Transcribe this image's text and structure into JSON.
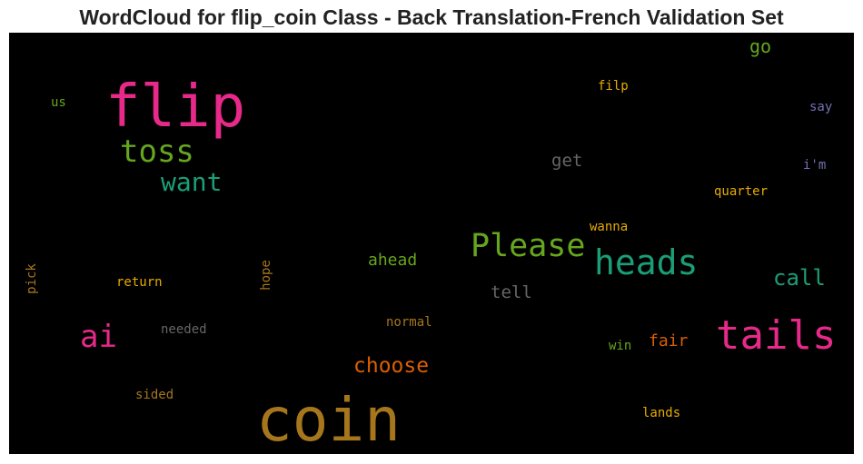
{
  "title": "WordCloud for flip_coin Class - Back Translation-French Validation Set",
  "colors": {
    "pink": "#e7298a",
    "green": "#66a61e",
    "teal": "#1b9e77",
    "orange": "#d95f02",
    "gold": "#a6761d",
    "yellow": "#e6ab02",
    "gray": "#666666",
    "purple": "#7570b3"
  },
  "words": [
    {
      "text": "flip"
    },
    {
      "text": "coin"
    },
    {
      "text": "tails"
    },
    {
      "text": "heads"
    },
    {
      "text": "Please"
    },
    {
      "text": "toss"
    },
    {
      "text": "want"
    },
    {
      "text": "ai"
    },
    {
      "text": "choose"
    },
    {
      "text": "call"
    },
    {
      "text": "get"
    },
    {
      "text": "tell"
    },
    {
      "text": "ahead"
    },
    {
      "text": "fair"
    },
    {
      "text": "go"
    },
    {
      "text": "filp"
    },
    {
      "text": "us"
    },
    {
      "text": "say"
    },
    {
      "text": "i'm"
    },
    {
      "text": "quarter"
    },
    {
      "text": "wanna"
    },
    {
      "text": "return"
    },
    {
      "text": "needed"
    },
    {
      "text": "normal"
    },
    {
      "text": "win"
    },
    {
      "text": "sided"
    },
    {
      "text": "lands"
    },
    {
      "text": "pick"
    },
    {
      "text": "hope"
    }
  ]
}
